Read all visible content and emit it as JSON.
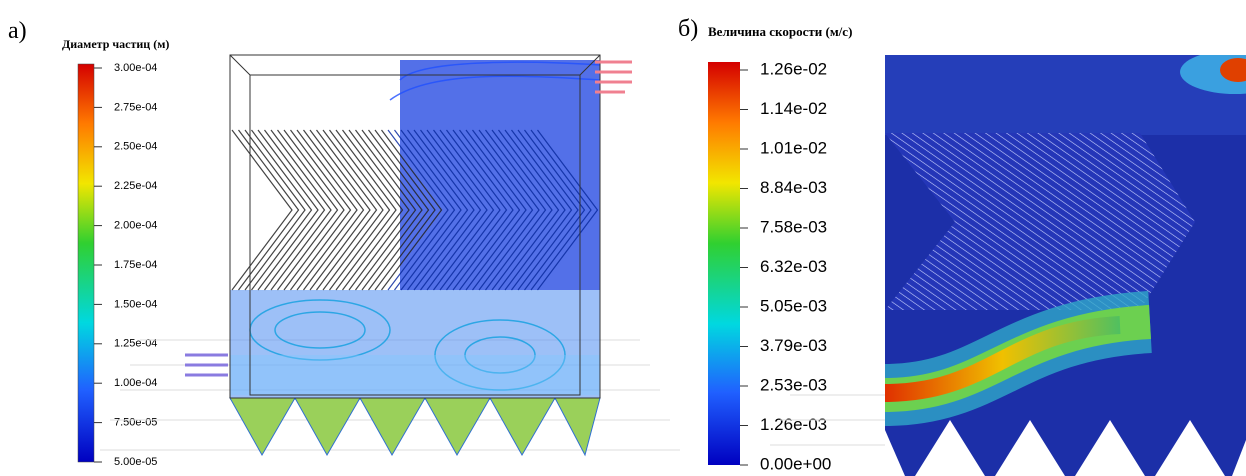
{
  "panels": [
    {
      "label": "а)",
      "title": "Диаметр частиц (м)",
      "colorbar_ticks": [
        "3.00e-04",
        "2.75e-04",
        "2.50e-04",
        "2.25e-04",
        "2.00e-04",
        "1.75e-04",
        "1.50e-04",
        "1.25e-04",
        "1.00e-04",
        "7.50e-05",
        "5.00e-05"
      ]
    },
    {
      "label": "б)",
      "title": "Величина скорости (м/с)",
      "colorbar_ticks": [
        "1.26e-02",
        "1.14e-02",
        "1.01e-02",
        "8.84e-03",
        "7.58e-03",
        "6.32e-03",
        "5.05e-03",
        "3.79e-03",
        "2.53e-03",
        "1.26e-03",
        "0.00e+00"
      ]
    }
  ]
}
